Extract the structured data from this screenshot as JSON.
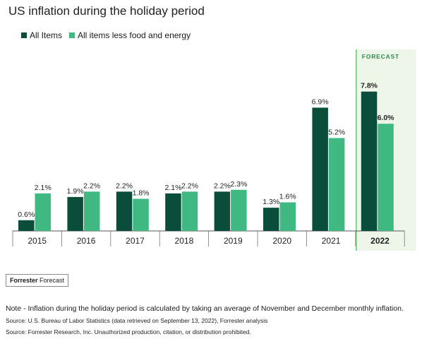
{
  "colors": {
    "all_items": "#0b4d3b",
    "less_food_energy": "#3fb981",
    "forecast_bg": "#eef6ea",
    "forecast_border": "#72c07a",
    "forecast_text": "#2f8a4a"
  },
  "chart_data": {
    "type": "bar",
    "title": "US inflation during the holiday period",
    "categories": [
      "2015",
      "2016",
      "2017",
      "2018",
      "2019",
      "2020",
      "2021",
      "2022"
    ],
    "series": [
      {
        "name": "All Items",
        "values": [
          0.6,
          1.9,
          2.2,
          2.1,
          2.2,
          1.3,
          6.9,
          7.8
        ],
        "labels": [
          "0.6%",
          "1.9%",
          "2.2%",
          "2.1%",
          "2.2%",
          "1.3%",
          "6.9%",
          "7.8%"
        ]
      },
      {
        "name": "All items less food and energy",
        "values": [
          2.1,
          2.2,
          1.8,
          2.2,
          2.3,
          1.6,
          5.2,
          6.0
        ],
        "labels": [
          "2.1%",
          "2.2%",
          "1.8%",
          "2.2%",
          "2.3%",
          "1.6%",
          "5.2%",
          "6.0%"
        ]
      }
    ],
    "forecast_label": "FORECAST",
    "forecast_category": "2022",
    "legend_position": "top-left",
    "grid": false
  },
  "footer": {
    "logo_brand": "Forrester",
    "logo_word": "Forecast",
    "note": "Note - Inflation during the holiday period is calculated by taking an average of November and December monthly inflation.",
    "source1": "Source: U.S. Bureau of Labor Statistics (data retrieved on September 13, 2022), Forrester analysis",
    "source2": "Source: Forrester Research, Inc. Unauthorized production, citation, or distribution prohibited."
  }
}
